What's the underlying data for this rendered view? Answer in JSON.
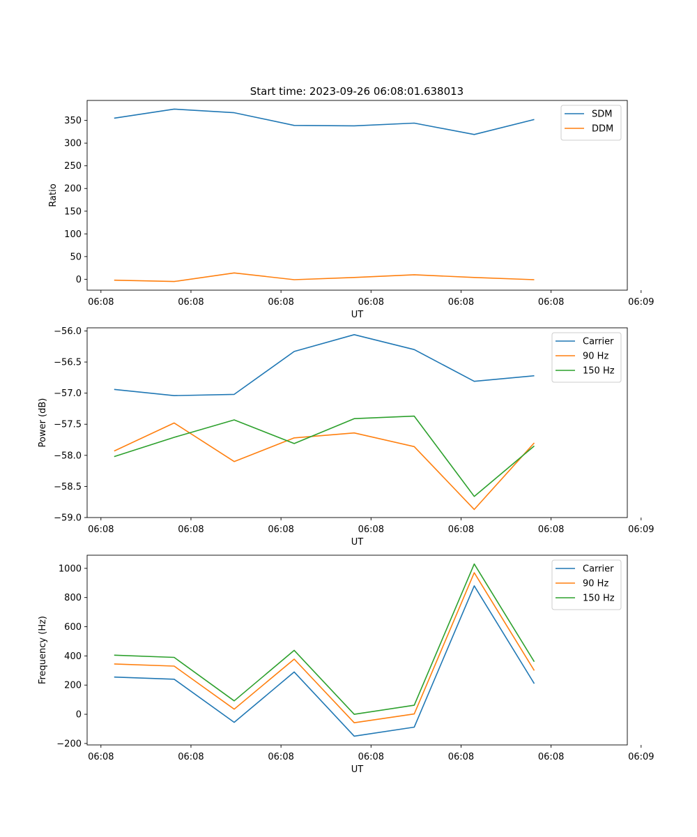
{
  "figure_title": "Start time: 2023-09-26 06:08:01.638013",
  "chart_data": [
    {
      "type": "line",
      "title": "Start time: 2023-09-26 06:08:01.638013",
      "xlabel": "UT",
      "ylabel": "Ratio",
      "x": [
        1,
        2,
        3,
        4,
        5,
        6,
        7,
        8
      ],
      "xlim": [
        0.55,
        9.55
      ],
      "xticks": [
        0.78,
        2.28,
        3.78,
        5.28,
        6.78,
        8.28,
        9.78
      ],
      "xtick_labels": [
        "06:08",
        "06:08",
        "06:08",
        "06:08",
        "06:08",
        "06:08",
        "06:09"
      ],
      "ylim": [
        -24,
        394
      ],
      "yticks": [
        0,
        50,
        100,
        150,
        200,
        250,
        300,
        350
      ],
      "ytick_labels": [
        "0",
        "50",
        "100",
        "150",
        "200",
        "250",
        "300",
        "350"
      ],
      "legend_position": "top-right",
      "series": [
        {
          "name": "SDM",
          "color": "#1f77b4",
          "values": [
            355,
            375,
            367,
            339,
            338,
            344,
            319,
            352
          ]
        },
        {
          "name": "DDM",
          "color": "#ff7f0e",
          "values": [
            -2,
            -5,
            14,
            -1,
            4,
            10,
            4,
            -1
          ]
        }
      ]
    },
    {
      "type": "line",
      "title": "",
      "xlabel": "UT",
      "ylabel": "Power (dB)",
      "x": [
        1,
        2,
        3,
        4,
        5,
        6,
        7,
        8
      ],
      "xlim": [
        0.55,
        9.55
      ],
      "xticks": [
        0.78,
        2.28,
        3.78,
        5.28,
        6.78,
        8.28,
        9.78
      ],
      "xtick_labels": [
        "06:08",
        "06:08",
        "06:08",
        "06:08",
        "06:08",
        "06:08",
        "06:09"
      ],
      "ylim": [
        -59.0,
        -55.95
      ],
      "yticks": [
        -59.0,
        -58.5,
        -58.0,
        -57.5,
        -57.0,
        -56.5,
        -56.0
      ],
      "ytick_labels": [
        "−59.0",
        "−58.5",
        "−58.0",
        "−57.5",
        "−57.0",
        "−56.5",
        "−56.0"
      ],
      "legend_position": "top-right",
      "series": [
        {
          "name": "Carrier",
          "color": "#1f77b4",
          "values": [
            -56.94,
            -57.04,
            -57.02,
            -56.33,
            -56.06,
            -56.3,
            -56.81,
            -56.72
          ]
        },
        {
          "name": "90 Hz",
          "color": "#ff7f0e",
          "values": [
            -57.93,
            -57.48,
            -58.1,
            -57.72,
            -57.64,
            -57.86,
            -58.87,
            -57.8
          ]
        },
        {
          "name": "150 Hz",
          "color": "#2ca02c",
          "values": [
            -58.02,
            -57.71,
            -57.43,
            -57.81,
            -57.41,
            -57.37,
            -58.66,
            -57.85
          ]
        }
      ]
    },
    {
      "type": "line",
      "title": "",
      "xlabel": "UT",
      "ylabel": "Frequency (Hz)",
      "x": [
        1,
        2,
        3,
        4,
        5,
        6,
        7,
        8
      ],
      "xlim": [
        0.55,
        9.55
      ],
      "xticks": [
        0.78,
        2.28,
        3.78,
        5.28,
        6.78,
        8.28,
        9.78
      ],
      "xtick_labels": [
        "06:08",
        "06:08",
        "06:08",
        "06:08",
        "06:08",
        "06:08",
        "06:09"
      ],
      "ylim": [
        -210,
        1090
      ],
      "yticks": [
        -200,
        0,
        200,
        400,
        600,
        800,
        1000
      ],
      "ytick_labels": [
        "−200",
        "0",
        "200",
        "400",
        "600",
        "800",
        "1000"
      ],
      "legend_position": "top-right",
      "series": [
        {
          "name": "Carrier",
          "color": "#1f77b4",
          "values": [
            255,
            240,
            -55,
            290,
            -150,
            -88,
            880,
            210
          ]
        },
        {
          "name": "90 Hz",
          "color": "#ff7f0e",
          "values": [
            345,
            330,
            35,
            378,
            -58,
            2,
            970,
            300
          ]
        },
        {
          "name": "150 Hz",
          "color": "#2ca02c",
          "values": [
            405,
            390,
            92,
            438,
            0,
            62,
            1030,
            360
          ]
        }
      ]
    }
  ]
}
